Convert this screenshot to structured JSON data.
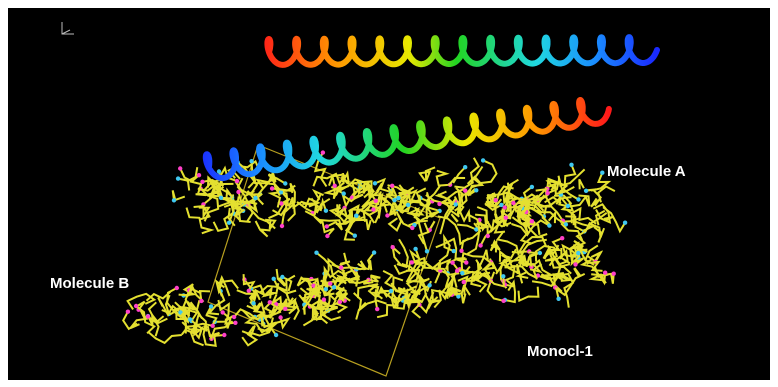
{
  "labels": {
    "molecule_a": "Molecule A",
    "molecule_b": "Molecule B",
    "unit_cell": "Monocl-1"
  }
}
